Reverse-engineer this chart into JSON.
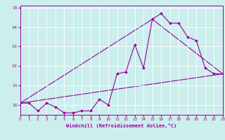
{
  "xlabel": "Windchill (Refroidissement éolien,°C)",
  "bg_color": "#cceeed",
  "line_color": "#990099",
  "grid_color": "#ffffff",
  "xmin": 0,
  "xmax": 23,
  "ymin": 9.5,
  "ymax": 15.1,
  "yticks": [
    10,
    11,
    12,
    13,
    14,
    15
  ],
  "xticks": [
    0,
    1,
    2,
    3,
    4,
    5,
    6,
    7,
    8,
    9,
    10,
    11,
    12,
    13,
    14,
    15,
    16,
    17,
    18,
    19,
    20,
    21,
    22,
    23
  ],
  "line1_x": [
    0,
    1,
    2,
    3,
    4,
    5,
    6,
    7,
    8,
    9,
    10,
    11,
    12,
    13,
    14,
    15,
    16,
    17,
    18,
    19,
    20,
    21,
    22,
    23
  ],
  "line1_y": [
    10.1,
    10.1,
    9.7,
    10.1,
    9.9,
    9.6,
    9.6,
    9.7,
    9.7,
    10.3,
    10.0,
    11.6,
    11.7,
    13.1,
    11.9,
    14.4,
    14.7,
    14.2,
    14.2,
    13.5,
    13.3,
    11.9,
    11.6,
    11.6
  ],
  "line2_x": [
    0,
    23
  ],
  "line2_y": [
    10.1,
    11.6
  ],
  "line3_x": [
    0,
    15,
    23
  ],
  "line3_y": [
    10.1,
    14.4,
    11.6
  ]
}
